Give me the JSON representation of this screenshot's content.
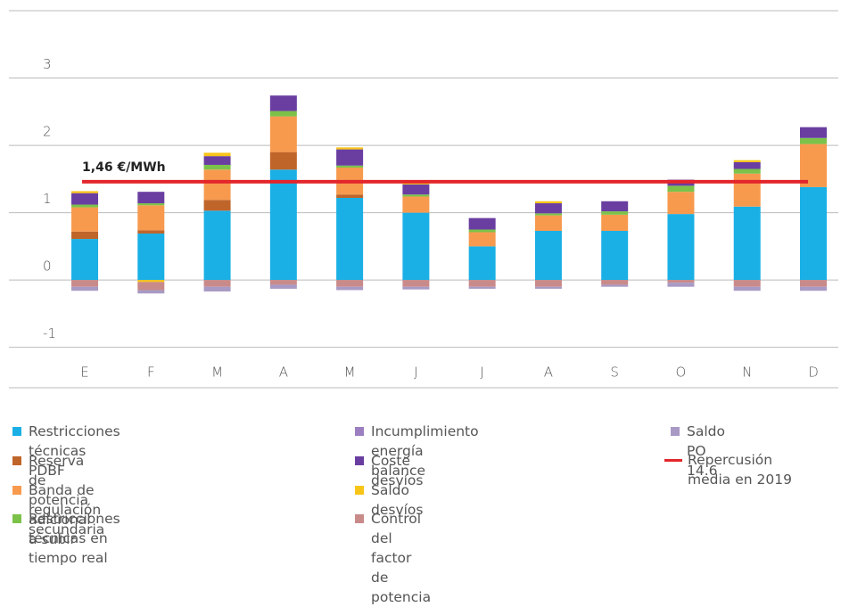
{
  "chart_data": {
    "type": "stacked_bar",
    "categories": [
      "E",
      "F",
      "M",
      "A",
      "M",
      "J",
      "J",
      "A",
      "S",
      "O",
      "N",
      "D"
    ],
    "ylim": [
      -1.6,
      4
    ],
    "yticks": [
      -1,
      0,
      1,
      2,
      3
    ],
    "series": [
      {
        "name": "Restricciones técnicas PDBF",
        "color": "#1ab0e6",
        "values": [
          0.61,
          0.69,
          1.03,
          1.64,
          1.22,
          1.0,
          0.5,
          0.73,
          0.73,
          0.98,
          1.09,
          1.38
        ]
      },
      {
        "name": "Reserva de potencia adicional a subir",
        "color": "#c0652a",
        "values": [
          0.11,
          0.05,
          0.16,
          0.26,
          0.05,
          0,
          0,
          0,
          0,
          0,
          0,
          0
        ]
      },
      {
        "name": "Banda de regulación secundaria",
        "color": "#f79a4e",
        "values": [
          0.36,
          0.37,
          0.45,
          0.53,
          0.4,
          0.24,
          0.21,
          0.23,
          0.24,
          0.33,
          0.49,
          0.64
        ]
      },
      {
        "name": "Restricciones técnicas en tiempo real",
        "color": "#7cc24a",
        "values": [
          0.04,
          0.03,
          0.07,
          0.08,
          0.03,
          0.03,
          0.04,
          0.03,
          0.05,
          0.09,
          0.07,
          0.09
        ]
      },
      {
        "name": "Incumplimiento energía balance",
        "color": "#9b7fc0",
        "values": [
          0,
          0,
          0,
          0,
          0,
          0,
          0,
          0,
          0,
          0,
          0,
          0
        ]
      },
      {
        "name": "Coste desvíos",
        "color": "#6a3ea1",
        "values": [
          0.17,
          0.17,
          0.13,
          0.23,
          0.24,
          0.15,
          0.17,
          0.15,
          0.15,
          0.09,
          0.1,
          0.16
        ]
      },
      {
        "name": "Saldo desvíos",
        "color": "#f7c518",
        "values": [
          0.03,
          -0.03,
          0.05,
          0,
          0.03,
          0.03,
          0,
          0.03,
          0,
          0,
          0.03,
          0
        ]
      },
      {
        "name": "Control del factor de potencia",
        "color": "#c98a8a",
        "values": [
          -0.1,
          -0.12,
          -0.1,
          -0.07,
          -0.1,
          -0.1,
          -0.1,
          -0.1,
          -0.07,
          -0.04,
          -0.1,
          -0.1
        ]
      },
      {
        "name": "Saldo PO 14.6",
        "color": "#a89ac4",
        "values": [
          -0.06,
          -0.05,
          -0.07,
          -0.06,
          -0.05,
          -0.04,
          -0.03,
          -0.03,
          -0.03,
          -0.06,
          -0.06,
          -0.06
        ]
      }
    ],
    "reference_line": {
      "name": "Repercusión media en 2019",
      "value": 1.46,
      "label": "1,46 €/MWh",
      "color": "#e3262b"
    },
    "grid": true
  }
}
